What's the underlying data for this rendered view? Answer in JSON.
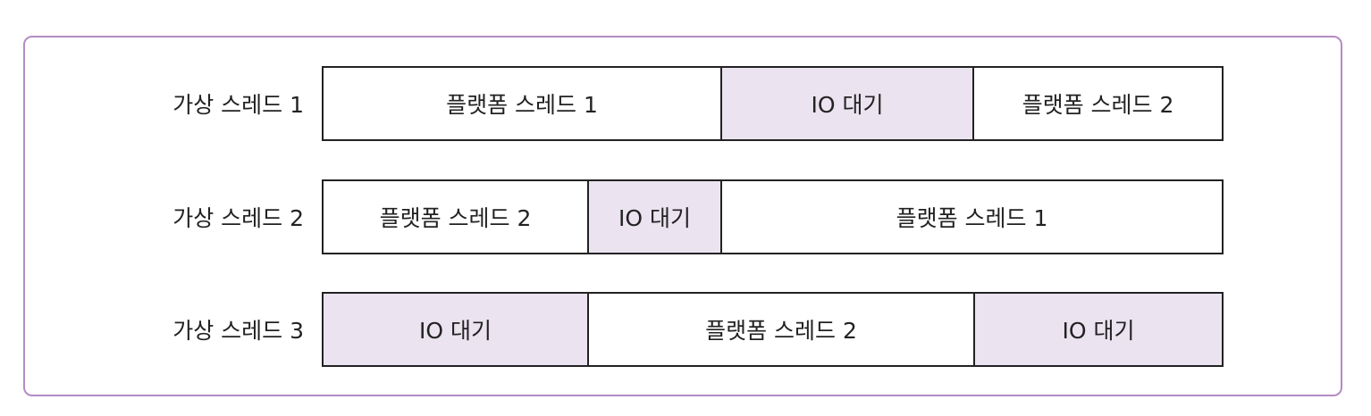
{
  "colors": {
    "frame_border": "#b58bc4",
    "io_fill": "#ebe3f0",
    "platform_fill": "#ffffff",
    "line": "#222222"
  },
  "rows": [
    {
      "label": "가상 스레드 1",
      "segments": [
        {
          "text": "플랫폼 스레드 1",
          "kind": "platform"
        },
        {
          "text": "IO 대기",
          "kind": "io"
        },
        {
          "text": "플랫폼 스레드 2",
          "kind": "platform"
        }
      ]
    },
    {
      "label": "가상 스레드 2",
      "segments": [
        {
          "text": "플랫폼 스레드 2",
          "kind": "platform"
        },
        {
          "text": "IO 대기",
          "kind": "io"
        },
        {
          "text": "플랫폼 스레드 1",
          "kind": "platform"
        }
      ]
    },
    {
      "label": "가상 스레드 3",
      "segments": [
        {
          "text": "IO 대기",
          "kind": "io"
        },
        {
          "text": "플랫폼 스레드 2",
          "kind": "platform"
        },
        {
          "text": "IO 대기",
          "kind": "io"
        }
      ]
    }
  ]
}
